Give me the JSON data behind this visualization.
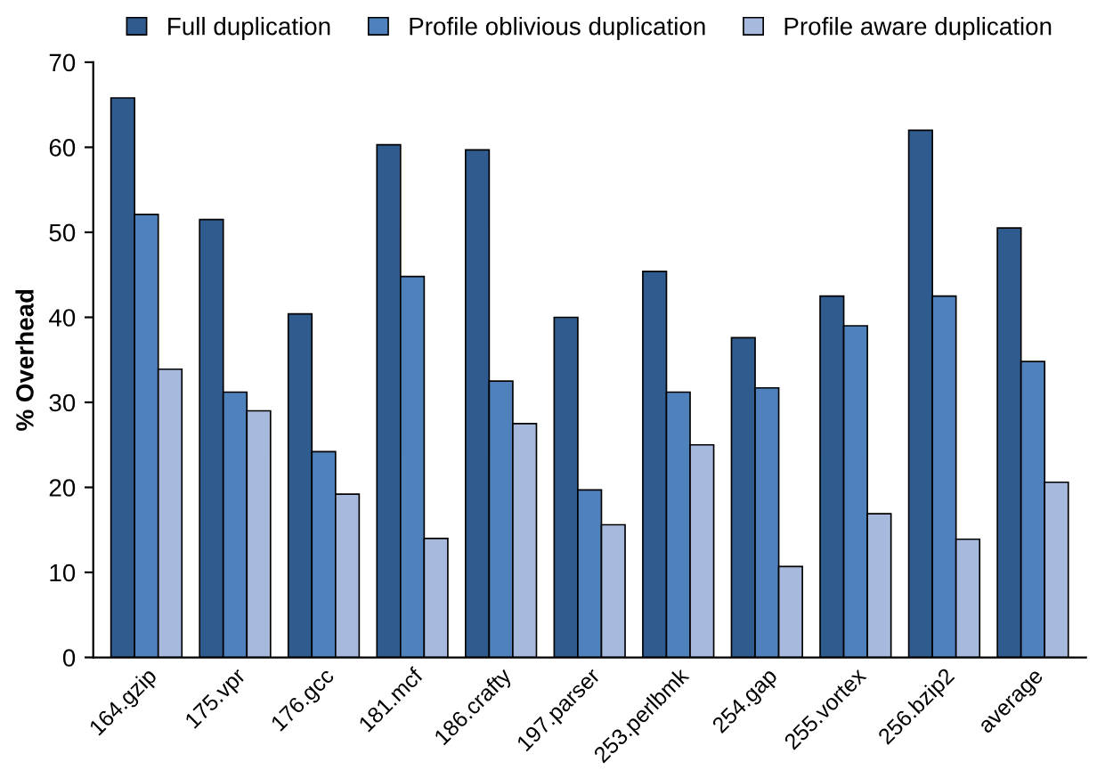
{
  "chart_data": {
    "type": "bar",
    "ylabel": "% Overhead",
    "categories": [
      "164.gzip",
      "175.vpr",
      "176.gcc",
      "181.mcf",
      "186.crafty",
      "197.parser",
      "253.perlbmk",
      "254.gap",
      "255.vortex",
      "256.bzip2",
      "average"
    ],
    "series": [
      {
        "name": "Full duplication",
        "color": "#2f5b8f",
        "values": [
          65.8,
          51.5,
          40.4,
          60.3,
          59.7,
          40,
          45.4,
          37.6,
          42.5,
          62,
          50.5
        ]
      },
      {
        "name": "Profile oblivious duplication",
        "color": "#4f81bd",
        "values": [
          52.1,
          31.2,
          24.2,
          44.8,
          32.5,
          19.7,
          31.2,
          31.7,
          39,
          42.5,
          34.8
        ]
      },
      {
        "name": "Profile aware duplication",
        "color": "#a7b9dc",
        "values": [
          33.9,
          29,
          19.2,
          14,
          27.5,
          15.6,
          25,
          10.7,
          16.9,
          13.9,
          20.6
        ]
      }
    ],
    "ylim": [
      0,
      70
    ],
    "yticks": [
      0,
      10,
      20,
      30,
      40,
      50,
      60,
      70
    ],
    "grid": false,
    "legend": "top"
  }
}
